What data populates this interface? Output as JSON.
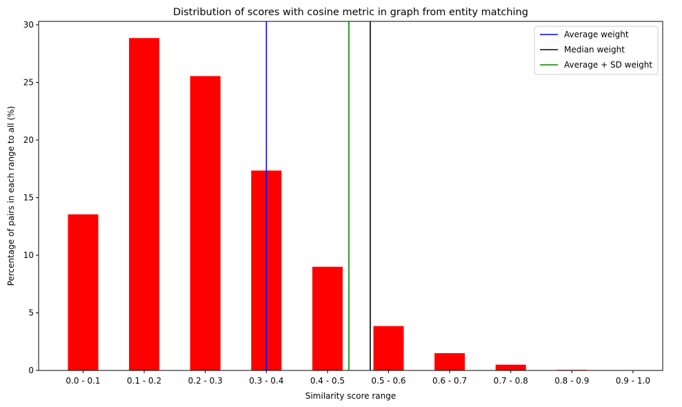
{
  "chart_data": {
    "type": "bar",
    "title": "Distribution of scores with cosine metric in graph from entity matching",
    "xlabel": "Similarity score range",
    "ylabel": "Percentage of pairs in each range to all (%)",
    "categories": [
      "0.0 - 0.1",
      "0.1 - 0.2",
      "0.2 - 0.3",
      "0.3 - 0.4",
      "0.4 - 0.5",
      "0.5 - 0.6",
      "0.6 - 0.7",
      "0.7 - 0.8",
      "0.8 - 0.9",
      "0.9 - 1.0"
    ],
    "values": [
      13.55,
      28.85,
      25.55,
      17.35,
      9.0,
      3.85,
      1.5,
      0.5,
      0.05,
      0.0
    ],
    "bar_color": "#ff0000",
    "ylim": [
      0,
      30.3
    ],
    "yticks": [
      0,
      5,
      10,
      15,
      20,
      25,
      30
    ],
    "grid": false,
    "reference_lines": [
      {
        "name": "Average weight",
        "x": 0.35,
        "color": "#0000ff"
      },
      {
        "name": "Median weight",
        "x": 0.52,
        "color": "#000000"
      },
      {
        "name": "Average + SD weight",
        "x": 0.485,
        "color": "#008000"
      }
    ],
    "legend_position": "top-right"
  }
}
